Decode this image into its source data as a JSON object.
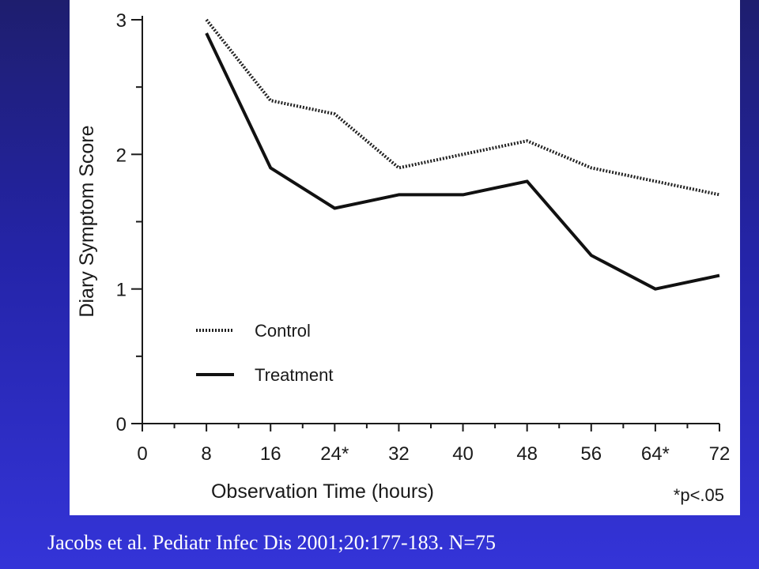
{
  "chart_data": {
    "type": "line",
    "title": "",
    "xlabel": "Observation Time (hours)",
    "ylabel": "Diary Symptom Score",
    "x": [
      8,
      16,
      24,
      32,
      40,
      48,
      56,
      64,
      72
    ],
    "xticks": [
      0,
      8,
      16,
      24,
      32,
      40,
      48,
      56,
      64,
      72
    ],
    "xtick_labels": [
      "0",
      "8",
      "16",
      "24*",
      "32",
      "40",
      "48",
      "56",
      "64*",
      "72"
    ],
    "yticks": [
      0,
      1,
      2,
      3
    ],
    "ytick_labels": [
      "0",
      "1",
      "2",
      "3"
    ],
    "xlim": [
      0,
      72
    ],
    "ylim": [
      0,
      3
    ],
    "grid": false,
    "legend_position": "lower-left",
    "series": [
      {
        "name": "Control",
        "style": "dotted",
        "color": "#222222",
        "values": [
          3.0,
          2.4,
          2.3,
          1.9,
          2.0,
          2.1,
          1.9,
          1.8,
          1.7
        ]
      },
      {
        "name": "Treatment",
        "style": "solid",
        "color": "#111111",
        "values": [
          2.9,
          1.9,
          1.6,
          1.7,
          1.7,
          1.8,
          1.25,
          1.0,
          1.1
        ]
      }
    ],
    "annotation": "*p<.05"
  },
  "citation": "Jacobs et al. Pediatr Infec Dis 2001;20:177-183. N=75",
  "colors": {
    "background": "#2a2ab8",
    "panel": "#ffffff",
    "text": "#ffffff"
  }
}
